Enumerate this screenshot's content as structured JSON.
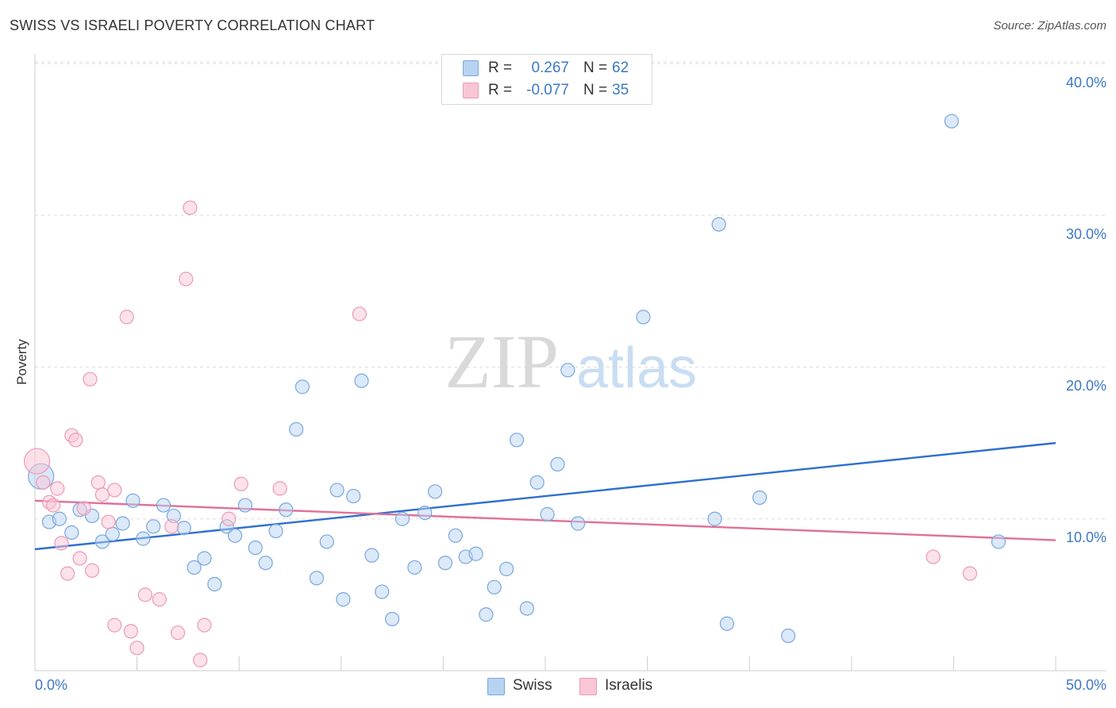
{
  "title": "SWISS VS ISRAELI POVERTY CORRELATION CHART",
  "source": "Source: ZipAtlas.com",
  "watermark": {
    "zip": "ZIP",
    "atlas": "atlas"
  },
  "legend": {
    "swiss": {
      "r_label": "R =",
      "r_value": "0.267",
      "n_label": "N =",
      "n_value": "62"
    },
    "israelis": {
      "r_label": "R =",
      "r_value": "-0.077",
      "n_label": "N =",
      "n_value": "35"
    }
  },
  "colors": {
    "swiss_fill": "#b8d3f2",
    "swiss_stroke": "#7aa7dd",
    "swiss_line": "#2f6fcd",
    "israelis_fill": "#f9c6d6",
    "israelis_stroke": "#eb9ab5",
    "israelis_line": "#e0709a",
    "tick_text": "#3d78c6",
    "grid": "#dddddd"
  },
  "chart_data": {
    "type": "scatter",
    "title": "SWISS VS ISRAELI POVERTY CORRELATION CHART",
    "xlabel": "",
    "ylabel": "Poverty",
    "xlim": [
      0,
      50
    ],
    "ylim": [
      0,
      40
    ],
    "x_tick_labels": [
      "0.0%",
      "50.0%"
    ],
    "y_ticks": [
      10,
      20,
      30,
      40
    ],
    "y_tick_labels": [
      "10.0%",
      "20.0%",
      "30.0%",
      "40.0%"
    ],
    "grid": "horizontal dashed",
    "legend_position": "bottom-center",
    "series": [
      {
        "name": "Swiss",
        "r": 0.267,
        "n": 62,
        "trend": [
          [
            0,
            8.0
          ],
          [
            50,
            15.0
          ]
        ],
        "points": [
          [
            0.3,
            12.8
          ],
          [
            0.7,
            9.8
          ],
          [
            1.2,
            10.0
          ],
          [
            1.8,
            9.1
          ],
          [
            2.2,
            10.6
          ],
          [
            2.8,
            10.2
          ],
          [
            3.3,
            8.5
          ],
          [
            3.8,
            9.0
          ],
          [
            4.3,
            9.7
          ],
          [
            4.8,
            11.2
          ],
          [
            5.3,
            8.7
          ],
          [
            5.8,
            9.5
          ],
          [
            6.3,
            10.9
          ],
          [
            6.8,
            10.2
          ],
          [
            7.3,
            9.4
          ],
          [
            7.8,
            6.8
          ],
          [
            8.3,
            7.4
          ],
          [
            8.8,
            5.7
          ],
          [
            9.4,
            9.5
          ],
          [
            9.8,
            8.9
          ],
          [
            10.3,
            10.9
          ],
          [
            10.8,
            8.1
          ],
          [
            11.3,
            7.1
          ],
          [
            11.8,
            9.2
          ],
          [
            12.3,
            10.6
          ],
          [
            12.8,
            15.9
          ],
          [
            13.1,
            18.7
          ],
          [
            13.8,
            6.1
          ],
          [
            14.3,
            8.5
          ],
          [
            14.8,
            11.9
          ],
          [
            15.1,
            4.7
          ],
          [
            15.6,
            11.5
          ],
          [
            16.0,
            19.1
          ],
          [
            16.5,
            7.6
          ],
          [
            17.0,
            5.2
          ],
          [
            17.5,
            3.4
          ],
          [
            18.0,
            10.0
          ],
          [
            18.6,
            6.8
          ],
          [
            19.1,
            10.4
          ],
          [
            19.6,
            11.8
          ],
          [
            20.1,
            7.1
          ],
          [
            20.6,
            8.9
          ],
          [
            21.1,
            7.5
          ],
          [
            21.6,
            7.7
          ],
          [
            22.1,
            3.7
          ],
          [
            22.5,
            5.5
          ],
          [
            23.1,
            6.7
          ],
          [
            23.6,
            15.2
          ],
          [
            24.1,
            4.1
          ],
          [
            24.6,
            12.4
          ],
          [
            25.1,
            10.3
          ],
          [
            25.6,
            13.6
          ],
          [
            26.1,
            19.8
          ],
          [
            26.6,
            9.7
          ],
          [
            29.8,
            23.3
          ],
          [
            33.3,
            10.0
          ],
          [
            33.5,
            29.4
          ],
          [
            33.9,
            3.1
          ],
          [
            35.5,
            11.4
          ],
          [
            36.9,
            2.3
          ],
          [
            44.9,
            36.2
          ],
          [
            47.2,
            8.5
          ]
        ]
      },
      {
        "name": "Israelis",
        "r": -0.077,
        "n": 35,
        "trend": [
          [
            0,
            11.2
          ],
          [
            50,
            8.6
          ]
        ],
        "points": [
          [
            0.1,
            13.8
          ],
          [
            0.4,
            12.4
          ],
          [
            0.7,
            11.1
          ],
          [
            0.9,
            10.9
          ],
          [
            1.1,
            12.0
          ],
          [
            1.3,
            8.4
          ],
          [
            1.6,
            6.4
          ],
          [
            1.8,
            15.5
          ],
          [
            2.0,
            15.2
          ],
          [
            2.2,
            7.4
          ],
          [
            2.4,
            10.7
          ],
          [
            2.7,
            19.2
          ],
          [
            2.8,
            6.6
          ],
          [
            3.1,
            12.4
          ],
          [
            3.3,
            11.6
          ],
          [
            3.6,
            9.8
          ],
          [
            3.9,
            3.0
          ],
          [
            3.9,
            11.9
          ],
          [
            4.5,
            23.3
          ],
          [
            4.7,
            2.6
          ],
          [
            5.0,
            1.5
          ],
          [
            5.4,
            5.0
          ],
          [
            6.1,
            4.7
          ],
          [
            6.7,
            9.5
          ],
          [
            7.0,
            2.5
          ],
          [
            7.4,
            25.8
          ],
          [
            7.6,
            30.5
          ],
          [
            8.1,
            0.7
          ],
          [
            8.3,
            3.0
          ],
          [
            9.5,
            10.0
          ],
          [
            10.1,
            12.3
          ],
          [
            12.0,
            12.0
          ],
          [
            15.9,
            23.5
          ],
          [
            44.0,
            7.5
          ],
          [
            45.8,
            6.4
          ]
        ]
      }
    ]
  }
}
